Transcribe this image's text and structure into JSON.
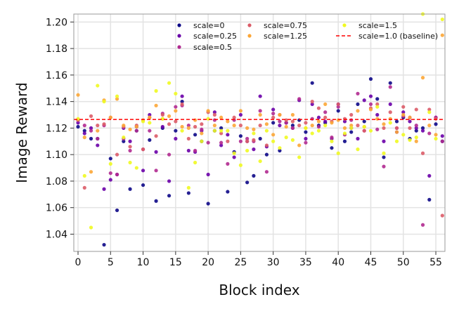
{
  "chart_data": {
    "type": "scatter",
    "title": "",
    "xlabel": "Block index",
    "ylabel": "Image Reward",
    "xlim": [
      -0.65,
      56.4
    ],
    "ylim": [
      1.027,
      1.206
    ],
    "xticks": [
      "0",
      "5",
      "10",
      "15",
      "20",
      "25",
      "30",
      "35",
      "40",
      "45",
      "50",
      "55"
    ],
    "yticks": [
      "1.04",
      "1.06",
      "1.08",
      "1.10",
      "1.12",
      "1.14",
      "1.16",
      "1.18",
      "1.20"
    ],
    "grid": true,
    "legend_position": "top",
    "baseline": {
      "name": "scale=1.0 (baseline)",
      "value": 1.1265,
      "color": "#ff0000",
      "style": "dashed"
    },
    "series": [
      {
        "name": "scale=0",
        "color": "#0d0887",
        "values": [
          1.121,
          1.118,
          1.112,
          1.112,
          1.032,
          1.097,
          1.058,
          1.11,
          1.074,
          1.118,
          1.077,
          1.111,
          1.065,
          1.12,
          1.069,
          1.118,
          1.14,
          1.071,
          1.115,
          1.11,
          1.063,
          1.118,
          1.12,
          1.072,
          1.102,
          1.114,
          1.079,
          1.084,
          1.112,
          1.1,
          1.124,
          1.103,
          1.124,
          1.122,
          1.126,
          1.117,
          1.154,
          1.122,
          1.124,
          1.105,
          1.133,
          1.11,
          1.117,
          1.138,
          1.125,
          1.157,
          1.142,
          1.098,
          1.154,
          1.125,
          1.128,
          1.112,
          1.118,
          1.12,
          1.066,
          1.123,
          1.11
        ]
      },
      {
        "name": "scale=0.25",
        "color": "#6a00a8",
        "values": [
          1.124,
          1.116,
          1.12,
          1.107,
          1.074,
          1.081,
          1.085,
          1.12,
          1.11,
          1.121,
          1.088,
          1.13,
          1.102,
          1.121,
          1.08,
          1.112,
          1.144,
          1.103,
          1.102,
          1.118,
          1.085,
          1.132,
          1.107,
          1.115,
          1.098,
          1.13,
          1.11,
          1.104,
          1.144,
          1.106,
          1.134,
          1.122,
          1.124,
          1.12,
          1.141,
          1.112,
          1.138,
          1.128,
          1.125,
          1.112,
          1.138,
          1.125,
          1.12,
          1.112,
          1.141,
          1.144,
          1.13,
          1.11,
          1.138,
          1.117,
          1.132,
          1.125,
          1.12,
          1.118,
          1.084,
          1.128,
          1.114
        ]
      },
      {
        "name": "scale=0.5",
        "color": "#b12a90",
        "values": [
          1.126,
          1.122,
          1.118,
          1.112,
          1.122,
          1.086,
          1.085,
          1.112,
          1.103,
          1.118,
          1.104,
          1.118,
          1.088,
          1.131,
          1.1,
          1.136,
          1.137,
          1.122,
          1.103,
          1.119,
          1.109,
          1.126,
          1.109,
          1.093,
          1.126,
          1.11,
          1.112,
          1.11,
          1.133,
          1.087,
          1.131,
          1.125,
          1.124,
          1.12,
          1.142,
          1.109,
          1.127,
          1.121,
          1.132,
          1.113,
          1.136,
          1.115,
          1.126,
          1.146,
          1.118,
          1.138,
          1.119,
          1.091,
          1.151,
          1.12,
          1.129,
          1.128,
          1.122,
          1.047,
          1.116,
          1.128,
          1.11
        ]
      },
      {
        "name": "scale=0.75",
        "color": "#db5c68",
        "values": [
          1.126,
          1.075,
          1.129,
          1.122,
          1.123,
          1.128,
          1.1,
          1.121,
          1.106,
          1.122,
          1.104,
          1.128,
          1.114,
          1.13,
          1.123,
          1.125,
          1.138,
          1.112,
          1.121,
          1.123,
          1.132,
          1.13,
          1.116,
          1.11,
          1.128,
          1.122,
          1.11,
          1.111,
          1.122,
          1.107,
          1.128,
          1.13,
          1.126,
          1.125,
          1.122,
          1.124,
          1.14,
          1.135,
          1.128,
          1.125,
          1.138,
          1.127,
          1.13,
          1.122,
          1.118,
          1.135,
          1.138,
          1.12,
          1.132,
          1.12,
          1.136,
          1.12,
          1.134,
          1.101,
          1.134,
          1.127,
          1.054
        ]
      },
      {
        "name": "scale=1.25",
        "color": "#fca636",
        "values": [
          1.145,
          1.113,
          1.087,
          1.118,
          1.141,
          1.128,
          1.142,
          1.122,
          1.119,
          1.121,
          1.126,
          1.128,
          1.137,
          1.127,
          1.129,
          1.133,
          1.121,
          1.12,
          1.126,
          1.116,
          1.133,
          1.122,
          1.128,
          1.125,
          1.122,
          1.133,
          1.12,
          1.119,
          1.13,
          1.123,
          1.115,
          1.13,
          1.121,
          1.13,
          1.107,
          1.12,
          1.122,
          1.125,
          1.138,
          1.124,
          1.126,
          1.12,
          1.122,
          1.133,
          1.121,
          1.134,
          1.127,
          1.123,
          1.127,
          1.117,
          1.13,
          1.128,
          1.11,
          1.158,
          1.122,
          1.115,
          1.19
        ]
      },
      {
        "name": "scale=1.5",
        "color": "#f0f921",
        "values": [
          1.127,
          1.084,
          1.045,
          1.152,
          1.14,
          1.093,
          1.144,
          1.113,
          1.094,
          1.09,
          1.125,
          1.124,
          1.148,
          1.127,
          1.154,
          1.146,
          1.118,
          1.075,
          1.094,
          1.11,
          1.127,
          1.118,
          1.118,
          1.118,
          1.101,
          1.092,
          1.103,
          1.116,
          1.095,
          1.118,
          1.11,
          1.105,
          1.113,
          1.111,
          1.098,
          1.12,
          1.116,
          1.118,
          1.122,
          1.11,
          1.101,
          1.116,
          1.12,
          1.104,
          1.121,
          1.118,
          1.136,
          1.101,
          1.124,
          1.11,
          1.115,
          1.111,
          1.113,
          1.206,
          1.132,
          1.112,
          1.202
        ]
      }
    ]
  }
}
